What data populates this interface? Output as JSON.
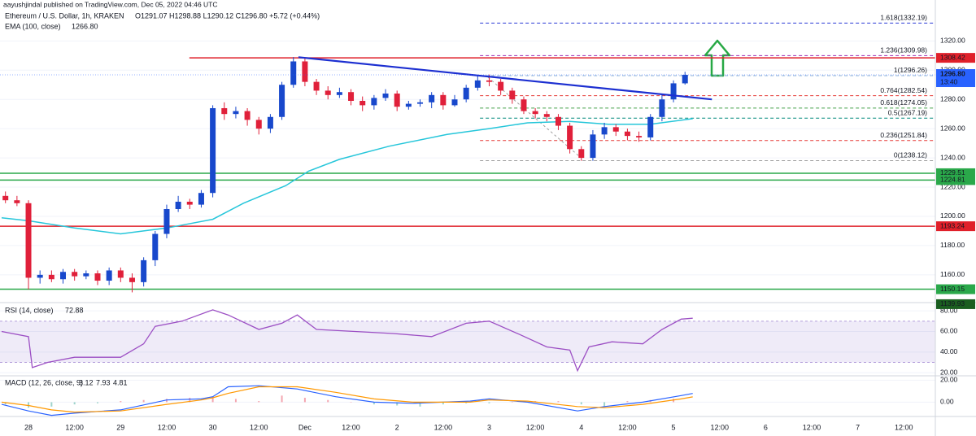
{
  "header": {
    "published": "aayushjindal published on TradingView.com, Dec 05, 2022 04:46 UTC"
  },
  "chart_data": [
    {
      "type": "candlestick",
      "title": "Ethereum / U.S. Dollar, 1h, KRAKEN",
      "legend_values": "O1291.07 H1298.88 L1290.12 C1296.80 +5.72 (+0.44%)",
      "up_color": "#1848cc",
      "down_color": "#e0203a",
      "grid": true,
      "xlim": [
        -7.42,
        236.2
      ],
      "xticks": [
        {
          "value": 0,
          "label": "28"
        },
        {
          "value": 12,
          "label": "12:00"
        },
        {
          "value": 24,
          "label": "29"
        },
        {
          "value": 36,
          "label": "12:00"
        },
        {
          "value": 48,
          "label": "30"
        },
        {
          "value": 60,
          "label": "12:00"
        },
        {
          "value": 72,
          "label": "Dec"
        },
        {
          "value": 84,
          "label": "12:00"
        },
        {
          "value": 96,
          "label": "2"
        },
        {
          "value": 108,
          "label": "12:00"
        },
        {
          "value": 120,
          "label": "3"
        },
        {
          "value": 132,
          "label": "12:00"
        },
        {
          "value": 144,
          "label": "4"
        },
        {
          "value": 156,
          "label": "12:00"
        },
        {
          "value": 168,
          "label": "5"
        },
        {
          "value": 180,
          "label": "12:00"
        },
        {
          "value": 192,
          "label": "6"
        },
        {
          "value": 204,
          "label": "12:00"
        },
        {
          "value": 216,
          "label": "7"
        },
        {
          "value": 228,
          "label": "12:00"
        }
      ],
      "ylim": [
        1141,
        1348
      ],
      "yticks": [
        {
          "value": 1160,
          "label": "1160.00"
        },
        {
          "value": 1180,
          "label": "1180.00"
        },
        {
          "value": 1200,
          "label": "1200.00"
        },
        {
          "value": 1220,
          "label": "1220.00"
        },
        {
          "value": 1240,
          "label": "1240.00"
        },
        {
          "value": 1260,
          "label": "1260.00"
        },
        {
          "value": 1280,
          "label": "1280.00"
        },
        {
          "value": 1300,
          "label": "1300.00"
        },
        {
          "value": 1320,
          "label": "1320.00"
        }
      ],
      "x": [
        -6,
        -3,
        0,
        3,
        6,
        9,
        12,
        15,
        18,
        21,
        24,
        27,
        30,
        33,
        36,
        39,
        42,
        45,
        48,
        51,
        54,
        57,
        60,
        63,
        66,
        69,
        72,
        75,
        78,
        81,
        84,
        87,
        90,
        93,
        96,
        99,
        102,
        105,
        108,
        111,
        114,
        117,
        120,
        123,
        126,
        129,
        132,
        135,
        138,
        141,
        144,
        147,
        150,
        153,
        156,
        159,
        162,
        165,
        168,
        171
      ],
      "open": [
        1214,
        1211,
        1209,
        1158,
        1160,
        1157,
        1162,
        1159,
        1161,
        1156,
        1163,
        1158,
        1155,
        1170,
        1188,
        1205,
        1210,
        1208,
        1216,
        1274,
        1270,
        1272,
        1266,
        1260,
        1268,
        1290,
        1306,
        1292,
        1286,
        1283,
        1285,
        1279,
        1276,
        1281,
        1284,
        1275,
        1277,
        1278,
        1283,
        1276,
        1280,
        1288,
        1293,
        1292,
        1286,
        1280,
        1272,
        1270,
        1268,
        1262,
        1246,
        1240,
        1256,
        1261,
        1258,
        1255,
        1254,
        1268,
        1280,
        1291
      ],
      "high": [
        1217,
        1214,
        1211,
        1163,
        1163,
        1164,
        1164,
        1163,
        1163,
        1165,
        1165,
        1161,
        1172,
        1190,
        1208,
        1214,
        1212,
        1218,
        1276,
        1278,
        1275,
        1274,
        1268,
        1270,
        1292,
        1309,
        1308,
        1294,
        1289,
        1288,
        1287,
        1282,
        1283,
        1287,
        1286,
        1279,
        1280,
        1285,
        1285,
        1283,
        1290,
        1296,
        1297,
        1294,
        1288,
        1282,
        1274,
        1272,
        1270,
        1264,
        1248,
        1259,
        1264,
        1263,
        1260,
        1258,
        1270,
        1283,
        1293,
        1298.9
      ],
      "low": [
        1209,
        1207,
        1150,
        1154,
        1155,
        1154,
        1156,
        1157,
        1153,
        1153,
        1155,
        1148,
        1152,
        1166,
        1185,
        1203,
        1205,
        1206,
        1213,
        1266,
        1267,
        1262,
        1256,
        1257,
        1266,
        1288,
        1289,
        1283,
        1280,
        1281,
        1276,
        1272,
        1273,
        1279,
        1272,
        1273,
        1275,
        1274,
        1273,
        1275,
        1278,
        1286,
        1289,
        1283,
        1277,
        1270,
        1267,
        1265,
        1259,
        1243,
        1238,
        1238,
        1253,
        1255,
        1252,
        1251,
        1252,
        1265,
        1278,
        1290.1
      ],
      "close": [
        1211,
        1209,
        1158,
        1160,
        1157,
        1162,
        1159,
        1161,
        1156,
        1163,
        1158,
        1155,
        1170,
        1188,
        1205,
        1210,
        1208,
        1216,
        1274,
        1270,
        1272,
        1266,
        1260,
        1268,
        1290,
        1306,
        1292,
        1286,
        1283,
        1285,
        1279,
        1276,
        1281,
        1284,
        1275,
        1277,
        1278,
        1283,
        1276,
        1280,
        1288,
        1293,
        1292,
        1286,
        1280,
        1272,
        1270,
        1268,
        1262,
        1246,
        1240,
        1256,
        1261,
        1258,
        1255,
        1254,
        1268,
        1280,
        1291,
        1296.8
      ],
      "ema": {
        "name": "EMA (100, close)",
        "last_label": "1266.80",
        "color": "#26c6da",
        "x": [
          -7,
          0,
          12,
          24,
          36,
          48,
          56,
          67,
          73,
          81,
          94,
          109,
          120,
          130,
          141,
          151,
          162,
          173
        ],
        "values": [
          1199,
          1197,
          1192,
          1188,
          1192,
          1198,
          1209,
          1221,
          1231,
          1239,
          1248,
          1256,
          1260,
          1264,
          1265,
          1263,
          1263,
          1266.8
        ]
      },
      "trendline": {
        "color": "#1c2fd1",
        "x": [
          70.3,
          178
        ],
        "values": [
          1308.9,
          1280
        ]
      },
      "levels": [
        {
          "value": 1308.42,
          "label": "1308.42",
          "color": "#e0202a",
          "x_start": 41.9
        },
        {
          "value": 1229.51,
          "label": "1229.51",
          "color": "#2aa84a"
        },
        {
          "value": 1224.81,
          "label": "1224.81",
          "color": "#2aa84a"
        },
        {
          "value": 1193.24,
          "label": "1193.24",
          "color": "#e0202a"
        },
        {
          "value": 1150.15,
          "label": "1150.15",
          "color": "#2aa84a"
        },
        {
          "value": 1139.93,
          "label": "1139.93",
          "color": "#1b5e20",
          "line": false
        }
      ],
      "last_price": {
        "value": 1296.8,
        "label": "1296.80",
        "time": "13:40",
        "color": "#2962ff"
      },
      "fib": {
        "x_start": 117.6,
        "levels": [
          {
            "value": 1332.19,
            "label": "1.618(1332.19)",
            "color": "#2b3bd6"
          },
          {
            "value": 1309.98,
            "label": "1.236(1309.98)",
            "color": "#9c27b0"
          },
          {
            "value": 1296.26,
            "label": "1(1296.26)",
            "color": "#8fb3d9"
          },
          {
            "value": 1282.54,
            "label": "0.764(1282.54)",
            "color": "#e53935"
          },
          {
            "value": 1274.05,
            "label": "0.618(1274.05)",
            "color": "#43a047"
          },
          {
            "value": 1267.19,
            "label": "0.5(1267.19)",
            "color": "#00897b"
          },
          {
            "value": 1251.84,
            "label": "0.236(1251.84)",
            "color": "#e53935"
          },
          {
            "value": 1238.12,
            "label": "0(1238.12)",
            "color": "#9e9e9e"
          }
        ]
      }
    },
    {
      "type": "line",
      "title": "RSI (14, close)",
      "last_label": "72.88",
      "color": "#9c4fc4",
      "ylim": [
        17,
        88
      ],
      "band": [
        30,
        70
      ],
      "yticks": [
        {
          "value": 20,
          "label": "20.00"
        },
        {
          "value": 40,
          "label": "40.00"
        },
        {
          "value": 60,
          "label": "60.00"
        },
        {
          "value": 80,
          "label": "80.00"
        }
      ],
      "x": [
        -7,
        0,
        1,
        5,
        12,
        24,
        30,
        33,
        40,
        48,
        52,
        60,
        66,
        70,
        75,
        85,
        95,
        105,
        114,
        120,
        128,
        135,
        141,
        143,
        146,
        152,
        160,
        165,
        170,
        173
      ],
      "values": [
        60,
        55,
        25,
        30,
        35,
        35,
        48,
        65,
        70,
        81,
        76,
        62,
        68,
        76,
        62,
        60,
        58,
        55,
        68,
        70,
        57,
        45,
        42,
        22,
        45,
        50,
        48,
        62,
        72,
        72.88
      ]
    },
    {
      "type": "macd",
      "title": "MACD (12, 26, close, 9)",
      "legend_labels": [
        "3.12",
        "7.93",
        "4.81"
      ],
      "ylim": [
        -13,
        24
      ],
      "yticks": [
        {
          "value": 0,
          "label": "0.00"
        },
        {
          "value": 20,
          "label": "20.00"
        }
      ],
      "histogram": {
        "up_color": "#f4a6b0",
        "down_color": "#9fd4cc",
        "x": [
          -6,
          0,
          6,
          12,
          18,
          24,
          30,
          36,
          42,
          48,
          54,
          60,
          66,
          72,
          78,
          84,
          90,
          96,
          102,
          108,
          114,
          120,
          126,
          132,
          138,
          144,
          150,
          156,
          162,
          168
        ],
        "values": [
          -2,
          -5,
          -4,
          -2,
          -1,
          1,
          2,
          3,
          4,
          5,
          3,
          1,
          6,
          4,
          2,
          0,
          -2,
          -3,
          -4,
          -2,
          -1,
          -1,
          0,
          1,
          1,
          -2,
          -4,
          1,
          2,
          3.12
        ]
      },
      "macd": {
        "color": "#2962ff",
        "x": [
          -7,
          0,
          6,
          12,
          24,
          36,
          45,
          48,
          52,
          60,
          70,
          80,
          90,
          100,
          115,
          120,
          130,
          143,
          150,
          160,
          170,
          173
        ],
        "values": [
          -2,
          -8,
          -12,
          -10,
          -7,
          2,
          3,
          5,
          14,
          15,
          12,
          5,
          0,
          -1,
          1,
          3,
          0,
          -8,
          -4,
          0,
          6,
          7.93
        ]
      },
      "signal": {
        "color": "#ff9800",
        "x": [
          -7,
          0,
          6,
          12,
          24,
          36,
          45,
          48,
          52,
          60,
          70,
          80,
          90,
          100,
          115,
          120,
          130,
          143,
          150,
          160,
          170,
          173
        ],
        "values": [
          0,
          -3,
          -7,
          -9,
          -8,
          -2,
          2,
          4,
          8,
          14,
          14,
          9,
          3,
          0,
          0,
          2,
          1,
          -4,
          -5,
          -2,
          3,
          4.81
        ]
      }
    }
  ]
}
